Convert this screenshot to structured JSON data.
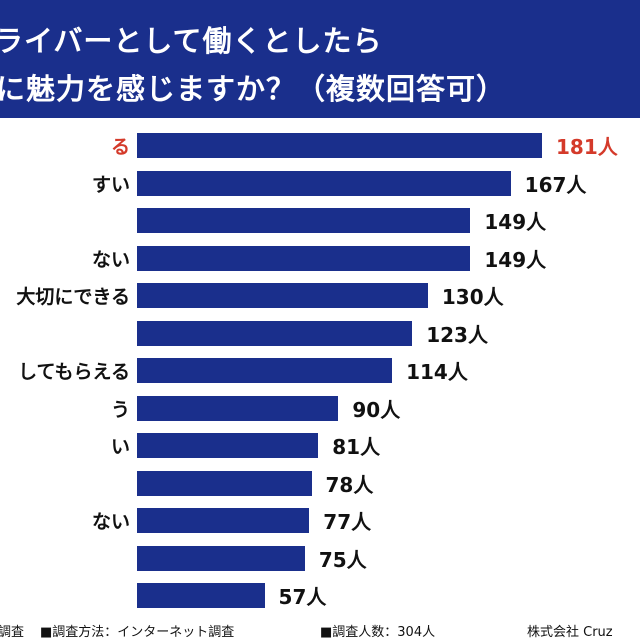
{
  "header": {
    "title_line1": "ライバーとして働くとしたら",
    "title_line2": "に魅力を感じますか？（複数回答可）"
  },
  "chart_data": {
    "type": "bar",
    "orientation": "horizontal",
    "unit": "人",
    "categories": [
      "る",
      "すい",
      "",
      "ない",
      "大切にできる",
      "",
      "してもらえる",
      "う",
      "い",
      "",
      "ない",
      "",
      ""
    ],
    "values": [
      181,
      167,
      149,
      149,
      130,
      123,
      114,
      90,
      81,
      78,
      77,
      75,
      57
    ],
    "highlight_index": 0,
    "xlim": [
      0,
      181
    ],
    "colors": {
      "bar": "#1a2f8c",
      "highlight_text": "#d43a2a"
    },
    "grid": false
  },
  "footer": {
    "item1": "調査",
    "item2": "■調査方法：インターネット調査",
    "item3": "■調査人数：304人",
    "company": "株式会社 Cruz"
  }
}
